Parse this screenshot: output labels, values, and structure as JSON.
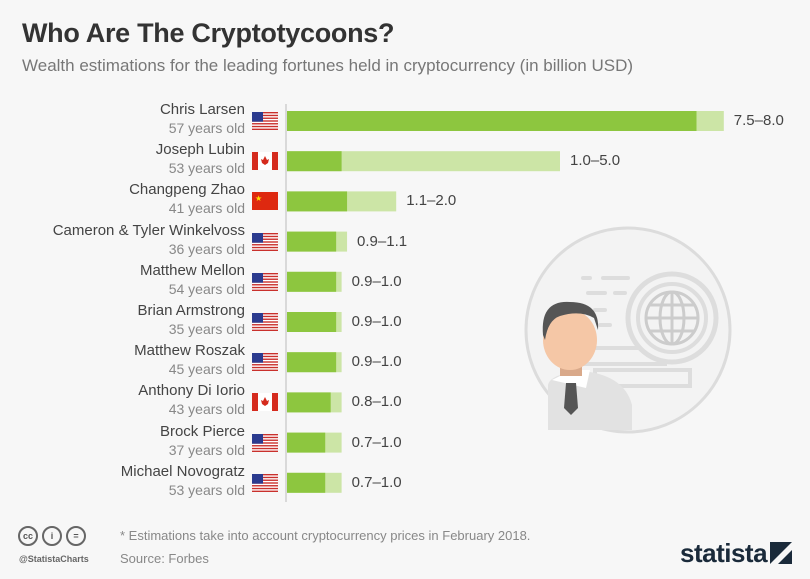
{
  "header": {
    "title": "Who Are The Cryptotycoons?",
    "subtitle": "Wealth estimations for the leading fortunes held in cryptocurrency (in billion USD)"
  },
  "colors": {
    "low_estimate": "#8dc63f",
    "high_estimate": "#cce5a6",
    "text": "#444444"
  },
  "chart_data": {
    "type": "bar",
    "orientation": "horizontal",
    "stacked_range": true,
    "title": "Who Are The Cryptotycoons?",
    "subtitle": "Wealth estimations for the leading fortunes held in cryptocurrency (in billion USD)",
    "xlim": [
      0,
      8
    ],
    "grid": false,
    "categories": [
      "Chris Larsen",
      "Joseph Lubin",
      "Changpeng Zhao",
      "Cameron & Tyler Winkelvoss",
      "Matthew Mellon",
      "Brian Armstrong",
      "Matthew Roszak",
      "Anthony Di Iorio",
      "Brock Pierce",
      "Michael Novogratz"
    ],
    "ages": [
      "57 years old",
      "53 years old",
      "41 years old",
      "36 years old",
      "54 years old",
      "35 years old",
      "45 years old",
      "43 years old",
      "37 years old",
      "53 years old"
    ],
    "flags": [
      "us-flag",
      "canada-flag",
      "china-flag",
      "us-flag",
      "us-flag",
      "us-flag",
      "us-flag",
      "canada-flag",
      "us-flag",
      "us-flag"
    ],
    "low": [
      7.5,
      1.0,
      1.1,
      0.9,
      0.9,
      0.9,
      0.9,
      0.8,
      0.7,
      0.7
    ],
    "high": [
      8.0,
      5.0,
      2.0,
      1.1,
      1.0,
      1.0,
      1.0,
      1.0,
      1.0,
      1.0
    ],
    "labels": [
      "7.5–8.0",
      "1.0–5.0",
      "1.1–2.0",
      "0.9–1.1",
      "0.9–1.0",
      "0.9–1.0",
      "0.9–1.0",
      "0.8–1.0",
      "0.7–1.0",
      "0.7–1.0"
    ]
  },
  "footer": {
    "note": "* Estimations take into account cryptocurrency prices in February 2018.",
    "source": "Source: Forbes",
    "handle": "@StatistaCharts",
    "cc_icons": [
      "cc",
      "i",
      "="
    ],
    "brand": "statista"
  }
}
